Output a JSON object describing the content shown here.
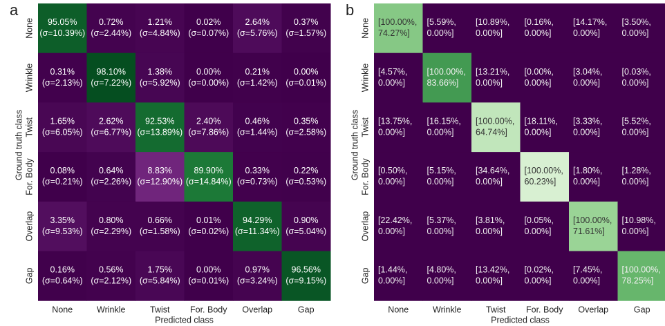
{
  "chart_data": [
    {
      "type": "heatmap",
      "panel_label": "a",
      "xlabel": "Predicted class",
      "ylabel": "Ground truth class",
      "categories": [
        "None",
        "Wrinkle",
        "Twist",
        "For. Body",
        "Overlap",
        "Gap"
      ],
      "colormap": "PRGn",
      "zlim": [
        0,
        100
      ],
      "values": [
        [
          95.05,
          0.72,
          1.21,
          0.02,
          2.64,
          0.37
        ],
        [
          0.31,
          98.1,
          1.38,
          0.0,
          0.21,
          0.0
        ],
        [
          1.65,
          2.62,
          92.53,
          2.4,
          0.46,
          0.35
        ],
        [
          0.08,
          0.64,
          8.83,
          89.9,
          0.33,
          0.22
        ],
        [
          3.35,
          0.8,
          0.66,
          0.01,
          94.29,
          0.9
        ],
        [
          0.16,
          0.56,
          1.75,
          0.0,
          0.97,
          96.56
        ]
      ],
      "value_labels": [
        [
          "95.05%",
          "0.72%",
          "1.21%",
          "0.02%",
          "2.64%",
          "0.37%"
        ],
        [
          "0.31%",
          "98.10%",
          "1.38%",
          "0.00%",
          "0.21%",
          "0.00%"
        ],
        [
          "1.65%",
          "2.62%",
          "92.53%",
          "2.40%",
          "0.46%",
          "0.35%"
        ],
        [
          "0.08%",
          "0.64%",
          "8.83%",
          "89.90%",
          "0.33%",
          "0.22%"
        ],
        [
          "3.35%",
          "0.80%",
          "0.66%",
          "0.01%",
          "94.29%",
          "0.90%"
        ],
        [
          "0.16%",
          "0.56%",
          "1.75%",
          "0.00%",
          "0.97%",
          "96.56%"
        ]
      ],
      "sigma": [
        [
          10.39,
          2.44,
          4.84,
          0.07,
          5.76,
          1.57
        ],
        [
          2.13,
          7.22,
          5.92,
          0.0,
          1.42,
          0.01
        ],
        [
          6.05,
          6.77,
          13.89,
          7.86,
          1.44,
          2.58
        ],
        [
          0.21,
          2.26,
          12.9,
          14.84,
          0.73,
          0.53
        ],
        [
          9.53,
          2.29,
          1.58,
          0.02,
          11.34,
          5.04
        ],
        [
          0.64,
          2.12,
          5.84,
          0.01,
          3.24,
          9.15
        ]
      ],
      "sigma_labels": [
        [
          "(σ=10.39%)",
          "(σ=2.44%)",
          "(σ=4.84%)",
          "(σ=0.07%)",
          "(σ=5.76%)",
          "(σ=1.57%)"
        ],
        [
          "(σ=2.13%)",
          "(σ=7.22%)",
          "(σ=5.92%)",
          "(σ=0.00%)",
          "(σ=1.42%)",
          "(σ=0.01%)"
        ],
        [
          "(σ=6.05%)",
          "(σ=6.77%)",
          "(σ=13.89%)",
          "(σ=7.86%)",
          "(σ=1.44%)",
          "(σ=2.58%)"
        ],
        [
          "(σ=0.21%)",
          "(σ=2.26%)",
          "(σ=12.90%)",
          "(σ=14.84%)",
          "(σ=0.73%)",
          "(σ=0.53%)"
        ],
        [
          "(σ=9.53%)",
          "(σ=2.29%)",
          "(σ=1.58%)",
          "(σ=0.02%)",
          "(σ=11.34%)",
          "(σ=5.04%)"
        ],
        [
          "(σ=0.64%)",
          "(σ=2.12%)",
          "(σ=5.84%)",
          "(σ=0.01%)",
          "(σ=3.24%)",
          "(σ=9.15%)"
        ]
      ]
    },
    {
      "type": "interval-heatmap",
      "panel_label": "b",
      "xlabel": "Predicted class",
      "ylabel": "Ground truth class",
      "categories": [
        "None",
        "Wrinkle",
        "Twist",
        "For. Body",
        "Overlap",
        "Gap"
      ],
      "colormap": "PRGn",
      "zlim": [
        0,
        100
      ],
      "intervals": [
        [
          [
            100.0,
            74.27
          ],
          [
            5.59,
            0.0
          ],
          [
            10.89,
            0.0
          ],
          [
            0.16,
            0.0
          ],
          [
            14.17,
            0.0
          ],
          [
            3.5,
            0.0
          ]
        ],
        [
          [
            4.57,
            0.0
          ],
          [
            100.0,
            83.66
          ],
          [
            13.21,
            0.0
          ],
          [
            0.0,
            0.0
          ],
          [
            3.04,
            0.0
          ],
          [
            0.03,
            0.0
          ]
        ],
        [
          [
            13.75,
            0.0
          ],
          [
            16.15,
            0.0
          ],
          [
            100.0,
            64.74
          ],
          [
            18.11,
            0.0
          ],
          [
            3.33,
            0.0
          ],
          [
            5.52,
            0.0
          ]
        ],
        [
          [
            0.5,
            0.0
          ],
          [
            5.15,
            0.0
          ],
          [
            34.64,
            0.0
          ],
          [
            100.0,
            60.23
          ],
          [
            1.8,
            0.0
          ],
          [
            1.28,
            0.0
          ]
        ],
        [
          [
            22.42,
            0.0
          ],
          [
            5.37,
            0.0
          ],
          [
            3.81,
            0.0
          ],
          [
            0.05,
            0.0
          ],
          [
            100.0,
            71.61
          ],
          [
            10.98,
            0.0
          ]
        ],
        [
          [
            1.44,
            0.0
          ],
          [
            4.8,
            0.0
          ],
          [
            13.42,
            0.0
          ],
          [
            0.02,
            0.0
          ],
          [
            7.45,
            0.0
          ],
          [
            100.0,
            78.25
          ]
        ]
      ],
      "interval_labels": [
        [
          [
            "[100.00%,",
            "74.27%]"
          ],
          [
            "[5.59%,",
            "0.00%]"
          ],
          [
            "[10.89%,",
            "0.00%]"
          ],
          [
            "[0.16%,",
            "0.00%]"
          ],
          [
            "[14.17%,",
            "0.00%]"
          ],
          [
            "[3.50%,",
            "0.00%]"
          ]
        ],
        [
          [
            "[4.57%,",
            "0.00%]"
          ],
          [
            "[100.00%,",
            "83.66%]"
          ],
          [
            "[13.21%,",
            "0.00%]"
          ],
          [
            "[0.00%,",
            "0.00%]"
          ],
          [
            "[3.04%,",
            "0.00%]"
          ],
          [
            "[0.03%,",
            "0.00%]"
          ]
        ],
        [
          [
            "[13.75%,",
            "0.00%]"
          ],
          [
            "[16.15%,",
            "0.00%]"
          ],
          [
            "[100.00%,",
            "64.74%]"
          ],
          [
            "[18.11%,",
            "0.00%]"
          ],
          [
            "[3.33%,",
            "0.00%]"
          ],
          [
            "[5.52%,",
            "0.00%]"
          ]
        ],
        [
          [
            "[0.50%,",
            "0.00%]"
          ],
          [
            "[5.15%,",
            "0.00%]"
          ],
          [
            "[34.64%,",
            "0.00%]"
          ],
          [
            "[100.00%,",
            "60.23%]"
          ],
          [
            "[1.80%,",
            "0.00%]"
          ],
          [
            "[1.28%,",
            "0.00%]"
          ]
        ],
        [
          [
            "[22.42%,",
            "0.00%]"
          ],
          [
            "[5.37%,",
            "0.00%]"
          ],
          [
            "[3.81%,",
            "0.00%]"
          ],
          [
            "[0.05%,",
            "0.00%]"
          ],
          [
            "[100.00%,",
            "71.61%]"
          ],
          [
            "[10.98%,",
            "0.00%]"
          ]
        ],
        [
          [
            "[1.44%,",
            "0.00%]"
          ],
          [
            "[4.80%,",
            "0.00%]"
          ],
          [
            "[13.42%,",
            "0.00%]"
          ],
          [
            "[0.02%,",
            "0.00%]"
          ],
          [
            "[7.45%,",
            "0.00%]"
          ],
          [
            "[100.00%,",
            "78.25%]"
          ]
        ]
      ]
    }
  ]
}
